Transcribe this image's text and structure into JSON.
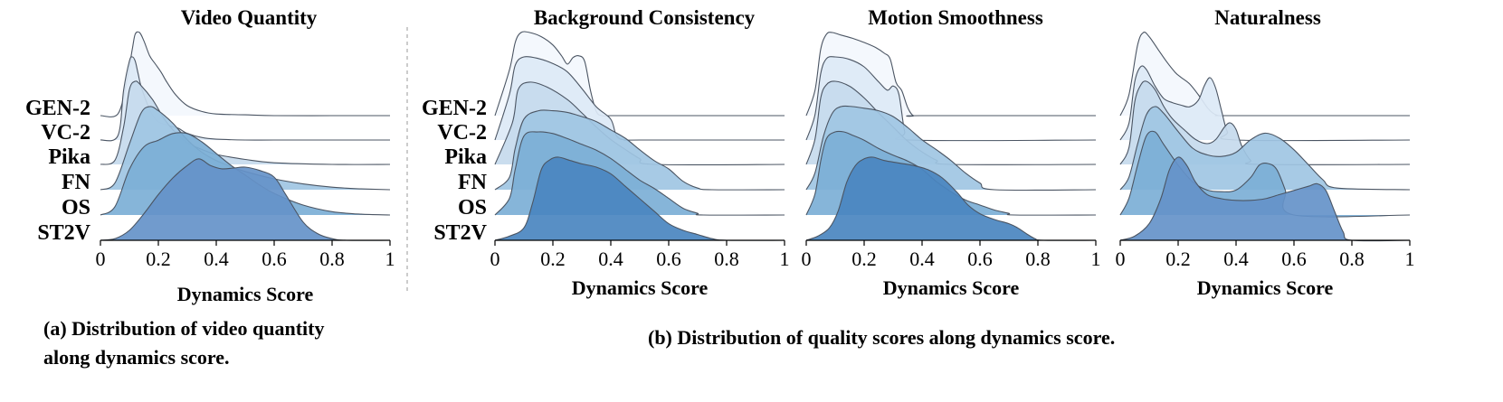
{
  "figure": {
    "caption_a_line1": "(a) Distribution of video quantity",
    "caption_a_line2": "along dynamics score.",
    "caption_b": "(b) Distribution of quality scores along dynamics score."
  },
  "chart_data": [
    {
      "type": "area",
      "title": "Video Quantity",
      "xlabel": "Dynamics Score",
      "ylabel": "",
      "xlim": [
        0,
        1
      ],
      "xticks": [
        "0",
        "0.2",
        "0.4",
        "0.6",
        "0.8",
        "1"
      ],
      "grid": false,
      "series": [
        {
          "name": "GEN-2",
          "color": "#f3f7fd",
          "x": [
            0.0,
            0.06,
            0.09,
            0.11,
            0.12,
            0.135,
            0.15,
            0.17,
            0.19,
            0.21,
            0.23,
            0.26,
            0.3,
            0.35,
            0.4,
            0.5,
            0.6,
            0.8,
            1.0
          ],
          "y": [
            0.0,
            0.02,
            0.4,
            0.8,
            0.98,
            1.0,
            0.9,
            0.72,
            0.62,
            0.52,
            0.4,
            0.25,
            0.12,
            0.05,
            0.02,
            0.01,
            0.0,
            0.0,
            0.0
          ]
        },
        {
          "name": "VC-2",
          "color": "#dce9f6",
          "x": [
            0.0,
            0.06,
            0.08,
            0.1,
            0.11,
            0.12,
            0.13,
            0.14,
            0.16,
            0.18,
            0.2,
            0.23,
            0.25,
            0.27,
            0.3,
            0.35,
            0.4,
            0.5,
            0.6,
            0.8,
            1.0
          ],
          "y": [
            0.0,
            0.05,
            0.6,
            0.95,
            1.0,
            0.95,
            0.8,
            0.65,
            0.45,
            0.3,
            0.22,
            0.18,
            0.16,
            0.14,
            0.08,
            0.03,
            0.01,
            0.0,
            0.0,
            0.0,
            0.0
          ]
        },
        {
          "name": "Pika",
          "color": "#c5daed",
          "x": [
            0.0,
            0.05,
            0.08,
            0.1,
            0.12,
            0.14,
            0.18,
            0.22,
            0.26,
            0.3,
            0.35,
            0.4,
            0.5,
            0.6,
            0.8,
            1.0
          ],
          "y": [
            0.0,
            0.05,
            0.45,
            0.9,
            1.0,
            0.95,
            0.78,
            0.55,
            0.38,
            0.26,
            0.18,
            0.12,
            0.06,
            0.02,
            0.0,
            0.0
          ]
        },
        {
          "name": "FN",
          "color": "#9fc6e3",
          "x": [
            0.0,
            0.05,
            0.1,
            0.14,
            0.17,
            0.2,
            0.25,
            0.3,
            0.35,
            0.4,
            0.45,
            0.5,
            0.6,
            0.7,
            0.8,
            0.9,
            1.0
          ],
          "y": [
            0.0,
            0.08,
            0.55,
            0.92,
            1.0,
            0.95,
            0.8,
            0.6,
            0.45,
            0.35,
            0.28,
            0.22,
            0.13,
            0.07,
            0.03,
            0.01,
            0.0
          ]
        },
        {
          "name": "OS",
          "color": "#7cafd6",
          "x": [
            0.0,
            0.05,
            0.1,
            0.15,
            0.2,
            0.25,
            0.3,
            0.35,
            0.4,
            0.45,
            0.5,
            0.55,
            0.6,
            0.7,
            0.8,
            0.9,
            1.0
          ],
          "y": [
            0.0,
            0.1,
            0.55,
            0.82,
            0.9,
            0.98,
            0.98,
            0.88,
            0.74,
            0.6,
            0.48,
            0.36,
            0.26,
            0.12,
            0.04,
            0.01,
            0.0
          ]
        },
        {
          "name": "ST2V",
          "color": "#6593c9",
          "x": [
            0.0,
            0.05,
            0.1,
            0.15,
            0.2,
            0.25,
            0.3,
            0.34,
            0.38,
            0.42,
            0.46,
            0.5,
            0.55,
            0.6,
            0.64,
            0.7,
            0.75,
            0.8,
            0.85,
            1.0
          ],
          "y": [
            0.0,
            0.02,
            0.12,
            0.32,
            0.55,
            0.75,
            0.9,
            0.98,
            0.9,
            0.86,
            0.87,
            0.88,
            0.84,
            0.76,
            0.55,
            0.22,
            0.08,
            0.02,
            0.0,
            0.0
          ]
        }
      ]
    },
    {
      "type": "area",
      "title": "Background Consistency",
      "xlabel": "Dynamics Score",
      "ylabel": "",
      "xlim": [
        0,
        1
      ],
      "xticks": [
        "0",
        "0.2",
        "0.4",
        "0.6",
        "0.8",
        "1"
      ],
      "grid": false,
      "series": [
        {
          "name": "GEN-2",
          "color": "#f3f7fd",
          "x": [
            0.0,
            0.05,
            0.07,
            0.09,
            0.12,
            0.16,
            0.2,
            0.23,
            0.25,
            0.27,
            0.29,
            0.31,
            0.33,
            0.35,
            0.37,
            0.4,
            0.5,
            0.6,
            1.0
          ],
          "y": [
            0.0,
            0.55,
            0.88,
            1.0,
            1.0,
            0.95,
            0.85,
            0.72,
            0.62,
            0.7,
            0.72,
            0.65,
            0.3,
            0.05,
            0.0,
            0.0,
            0.0,
            0.0,
            0.0
          ]
        },
        {
          "name": "VC-2",
          "color": "#dce9f6",
          "x": [
            0.0,
            0.05,
            0.07,
            0.1,
            0.15,
            0.2,
            0.25,
            0.3,
            0.35,
            0.4,
            0.42,
            0.45,
            0.5,
            1.0
          ],
          "y": [
            0.0,
            0.55,
            0.9,
            1.0,
            0.98,
            0.92,
            0.82,
            0.62,
            0.4,
            0.25,
            0.05,
            0.0,
            0.0,
            0.0
          ]
        },
        {
          "name": "Pika",
          "color": "#c5daed",
          "x": [
            0.0,
            0.06,
            0.08,
            0.12,
            0.18,
            0.25,
            0.3,
            0.35,
            0.4,
            0.45,
            0.5,
            0.55,
            1.0
          ],
          "y": [
            0.0,
            0.5,
            0.9,
            0.99,
            0.93,
            0.78,
            0.62,
            0.45,
            0.3,
            0.18,
            0.07,
            0.0,
            0.0
          ]
        },
        {
          "name": "FN",
          "color": "#9fc6e3",
          "x": [
            0.0,
            0.05,
            0.07,
            0.1,
            0.15,
            0.2,
            0.25,
            0.3,
            0.35,
            0.4,
            0.45,
            0.5,
            0.55,
            0.6,
            0.65,
            0.7,
            0.75,
            1.0
          ],
          "y": [
            0.0,
            0.15,
            0.5,
            0.85,
            0.95,
            0.95,
            0.93,
            0.88,
            0.82,
            0.72,
            0.62,
            0.48,
            0.35,
            0.25,
            0.1,
            0.02,
            0.0,
            0.0
          ]
        },
        {
          "name": "OS",
          "color": "#7cafd6",
          "x": [
            0.0,
            0.05,
            0.07,
            0.1,
            0.15,
            0.2,
            0.25,
            0.3,
            0.35,
            0.4,
            0.45,
            0.5,
            0.55,
            0.6,
            0.65,
            0.7,
            0.72,
            1.0
          ],
          "y": [
            0.0,
            0.2,
            0.55,
            0.95,
            1.0,
            0.98,
            0.92,
            0.85,
            0.78,
            0.68,
            0.55,
            0.42,
            0.32,
            0.2,
            0.08,
            0.02,
            0.0,
            0.0
          ]
        },
        {
          "name": "ST2V",
          "color": "#4a86c0",
          "x": [
            0.0,
            0.05,
            0.1,
            0.13,
            0.16,
            0.19,
            0.22,
            0.26,
            0.3,
            0.35,
            0.4,
            0.45,
            0.5,
            0.55,
            0.6,
            0.65,
            0.7,
            0.75,
            0.8,
            1.0
          ],
          "y": [
            0.0,
            0.05,
            0.15,
            0.45,
            0.85,
            0.97,
            1.0,
            0.96,
            0.92,
            0.88,
            0.8,
            0.65,
            0.5,
            0.35,
            0.2,
            0.12,
            0.07,
            0.02,
            0.0,
            0.0
          ]
        }
      ]
    },
    {
      "type": "area",
      "title": "Motion Smoothness",
      "xlabel": "Dynamics Score",
      "ylabel": "",
      "xlim": [
        0,
        1
      ],
      "xticks": [
        "0",
        "0.2",
        "0.4",
        "0.6",
        "0.8",
        "1"
      ],
      "grid": false,
      "series": [
        {
          "name": "GEN-2",
          "color": "#f3f7fd",
          "x": [
            0.0,
            0.03,
            0.05,
            0.07,
            0.09,
            0.12,
            0.16,
            0.2,
            0.24,
            0.27,
            0.29,
            0.31,
            0.33,
            0.35,
            0.37,
            0.4,
            1.0
          ],
          "y": [
            0.0,
            0.3,
            0.8,
            0.98,
            1.0,
            0.97,
            0.93,
            0.88,
            0.82,
            0.75,
            0.68,
            0.4,
            0.3,
            0.1,
            0.0,
            0.0,
            0.0
          ]
        },
        {
          "name": "VC-2",
          "color": "#dce9f6",
          "x": [
            0.0,
            0.03,
            0.05,
            0.07,
            0.1,
            0.15,
            0.2,
            0.25,
            0.28,
            0.3,
            0.32,
            0.34,
            0.36,
            1.0
          ],
          "y": [
            0.0,
            0.3,
            0.8,
            0.98,
            1.0,
            0.97,
            0.88,
            0.7,
            0.6,
            0.65,
            0.55,
            0.1,
            0.0,
            0.0
          ]
        },
        {
          "name": "Pika",
          "color": "#c5daed",
          "x": [
            0.0,
            0.03,
            0.05,
            0.07,
            0.1,
            0.15,
            0.2,
            0.25,
            0.3,
            0.35,
            0.4,
            0.45,
            0.5,
            1.0
          ],
          "y": [
            0.0,
            0.3,
            0.8,
            0.96,
            1.0,
            0.94,
            0.8,
            0.62,
            0.45,
            0.28,
            0.15,
            0.05,
            0.0,
            0.0
          ]
        },
        {
          "name": "FN",
          "color": "#9fc6e3",
          "x": [
            0.0,
            0.03,
            0.06,
            0.09,
            0.12,
            0.16,
            0.2,
            0.25,
            0.3,
            0.35,
            0.4,
            0.45,
            0.5,
            0.55,
            0.6,
            0.65,
            1.0
          ],
          "y": [
            0.0,
            0.2,
            0.65,
            0.92,
            1.0,
            1.0,
            0.98,
            0.95,
            0.88,
            0.75,
            0.6,
            0.48,
            0.35,
            0.2,
            0.08,
            0.0,
            0.0
          ]
        },
        {
          "name": "OS",
          "color": "#7cafd6",
          "x": [
            0.0,
            0.03,
            0.05,
            0.07,
            0.1,
            0.13,
            0.16,
            0.2,
            0.25,
            0.3,
            0.35,
            0.4,
            0.45,
            0.5,
            0.55,
            0.6,
            0.65,
            0.7,
            0.72,
            1.0
          ],
          "y": [
            0.0,
            0.25,
            0.65,
            0.92,
            1.0,
            1.0,
            0.96,
            0.9,
            0.8,
            0.72,
            0.65,
            0.55,
            0.4,
            0.28,
            0.18,
            0.12,
            0.06,
            0.02,
            0.0,
            0.0
          ]
        },
        {
          "name": "ST2V",
          "color": "#4a86c0",
          "x": [
            0.0,
            0.04,
            0.08,
            0.11,
            0.14,
            0.17,
            0.2,
            0.23,
            0.27,
            0.32,
            0.37,
            0.42,
            0.47,
            0.52,
            0.56,
            0.6,
            0.65,
            0.7,
            0.73,
            0.76,
            0.79,
            0.82,
            1.0
          ],
          "y": [
            0.0,
            0.05,
            0.15,
            0.35,
            0.7,
            0.9,
            0.98,
            1.0,
            0.96,
            0.93,
            0.9,
            0.85,
            0.75,
            0.58,
            0.42,
            0.32,
            0.25,
            0.2,
            0.15,
            0.08,
            0.02,
            0.0,
            0.0
          ]
        }
      ]
    },
    {
      "type": "area",
      "title": "Naturalness",
      "xlabel": "Dynamics Score",
      "ylabel": "",
      "xlim": [
        0,
        1
      ],
      "xticks": [
        "0",
        "0.2",
        "0.4",
        "0.6",
        "0.8",
        "1"
      ],
      "grid": false,
      "series": [
        {
          "name": "GEN-2",
          "color": "#f3f7fd",
          "x": [
            0.0,
            0.03,
            0.06,
            0.08,
            0.1,
            0.13,
            0.16,
            0.19,
            0.21,
            0.24,
            0.27,
            0.3,
            0.32,
            0.34,
            0.36,
            0.38,
            1.0
          ],
          "y": [
            0.0,
            0.25,
            0.85,
            1.0,
            0.95,
            0.8,
            0.65,
            0.52,
            0.46,
            0.38,
            0.25,
            0.1,
            0.03,
            0.0,
            0.0,
            0.0,
            0.0
          ]
        },
        {
          "name": "VC-2",
          "color": "#dce9f6",
          "x": [
            0.0,
            0.03,
            0.05,
            0.07,
            0.09,
            0.12,
            0.15,
            0.18,
            0.21,
            0.24,
            0.27,
            0.29,
            0.31,
            0.33,
            0.35,
            0.37,
            0.4,
            1.0
          ],
          "y": [
            0.0,
            0.2,
            0.7,
            0.88,
            0.85,
            0.65,
            0.5,
            0.45,
            0.42,
            0.4,
            0.48,
            0.65,
            0.75,
            0.62,
            0.35,
            0.1,
            0.0,
            0.0
          ]
        },
        {
          "name": "Pika",
          "color": "#c5daed",
          "x": [
            0.0,
            0.03,
            0.05,
            0.07,
            0.09,
            0.12,
            0.15,
            0.18,
            0.22,
            0.26,
            0.3,
            0.33,
            0.36,
            0.38,
            0.4,
            0.42,
            0.45,
            0.48,
            1.0
          ],
          "y": [
            0.0,
            0.2,
            0.75,
            0.95,
            1.0,
            0.9,
            0.7,
            0.55,
            0.42,
            0.3,
            0.25,
            0.3,
            0.45,
            0.5,
            0.42,
            0.22,
            0.05,
            0.0,
            0.0
          ]
        },
        {
          "name": "FN",
          "color": "#9fc6e3",
          "x": [
            0.0,
            0.03,
            0.06,
            0.09,
            0.12,
            0.15,
            0.2,
            0.25,
            0.3,
            0.35,
            0.4,
            0.45,
            0.5,
            0.55,
            0.6,
            0.65,
            0.7,
            0.75,
            1.0
          ],
          "y": [
            0.0,
            0.15,
            0.55,
            0.9,
            1.0,
            0.92,
            0.7,
            0.5,
            0.42,
            0.4,
            0.45,
            0.6,
            0.68,
            0.62,
            0.48,
            0.3,
            0.12,
            0.02,
            0.0
          ]
        },
        {
          "name": "OS",
          "color": "#7cafd6",
          "x": [
            0.0,
            0.03,
            0.06,
            0.09,
            0.12,
            0.15,
            0.2,
            0.25,
            0.3,
            0.35,
            0.4,
            0.45,
            0.48,
            0.51,
            0.54,
            0.57,
            0.6,
            1.0
          ],
          "y": [
            0.0,
            0.2,
            0.6,
            0.95,
            1.0,
            0.85,
            0.6,
            0.4,
            0.3,
            0.28,
            0.3,
            0.45,
            0.6,
            0.62,
            0.55,
            0.3,
            0.0,
            0.0
          ]
        },
        {
          "name": "ST2V",
          "color": "#6593c9",
          "x": [
            0.0,
            0.05,
            0.1,
            0.14,
            0.17,
            0.2,
            0.23,
            0.26,
            0.3,
            0.35,
            0.4,
            0.45,
            0.5,
            0.55,
            0.6,
            0.65,
            0.68,
            0.71,
            0.74,
            0.77,
            0.8,
            1.0
          ],
          "y": [
            0.0,
            0.05,
            0.2,
            0.5,
            0.85,
            1.0,
            0.9,
            0.7,
            0.55,
            0.5,
            0.48,
            0.48,
            0.5,
            0.55,
            0.6,
            0.65,
            0.68,
            0.6,
            0.35,
            0.1,
            0.0,
            0.0
          ]
        }
      ]
    }
  ]
}
